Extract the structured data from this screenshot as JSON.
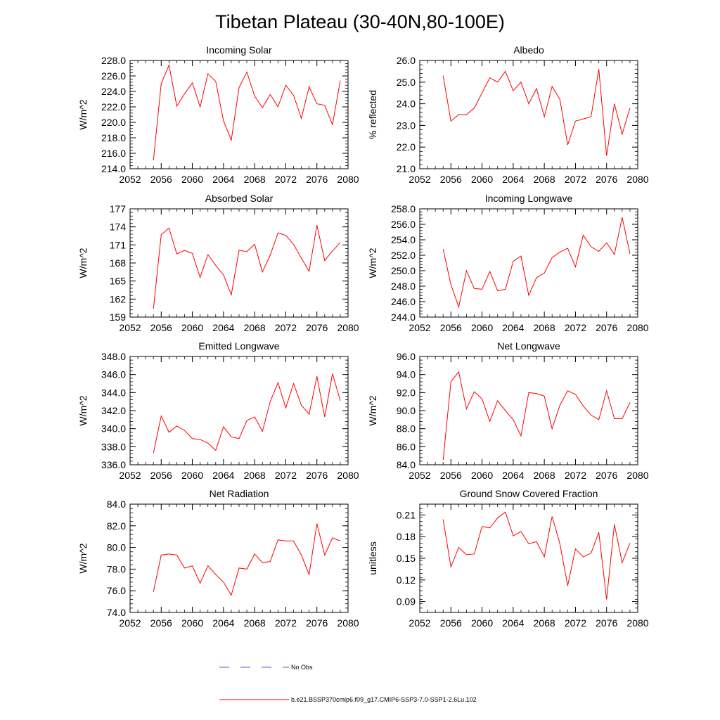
{
  "figure": {
    "title": "Tibetan Plateau (30-40N,80-100E)"
  },
  "legend": {
    "obs_label": "No Obs",
    "obs_color": "#5555cc",
    "model_label": "b.e21.BSSP370cmip6.f09_g17.CMIP6-SSP3-7.0-SSP1-2.6Lu.102",
    "model_color": "#ff0000"
  },
  "chart_data": [
    {
      "type": "line",
      "title": "Incoming Solar",
      "ylabel": "W/m^2",
      "xlim": [
        2052,
        2080
      ],
      "ylim": [
        214,
        228
      ],
      "yticks": [
        214,
        216,
        218,
        220,
        222,
        224,
        226,
        228
      ],
      "ytick_labels": [
        "214.0",
        "216.0",
        "218.0",
        "220.0",
        "222.0",
        "224.0",
        "226.0",
        "228.0"
      ],
      "xticks": [
        2052,
        2056,
        2060,
        2064,
        2068,
        2072,
        2076,
        2080
      ],
      "xtick_labels": [
        "2052",
        "2056",
        "2060",
        "2064",
        "2068",
        "2072",
        "2076",
        "2080"
      ],
      "x": [
        2055,
        2056,
        2057,
        2058,
        2059,
        2060,
        2061,
        2062,
        2063,
        2064,
        2065,
        2066,
        2067,
        2068,
        2069,
        2070,
        2071,
        2072,
        2073,
        2074,
        2075,
        2076,
        2077,
        2078,
        2079
      ],
      "series": [
        {
          "values": [
            215.1,
            225.0,
            227.4,
            222.1,
            223.7,
            225.1,
            222.0,
            226.3,
            225.3,
            220.2,
            217.7,
            224.5,
            226.5,
            223.4,
            221.9,
            223.6,
            222.0,
            224.8,
            223.5,
            220.5,
            224.6,
            222.4,
            222.2,
            219.7,
            225.4
          ]
        }
      ]
    },
    {
      "type": "line",
      "title": "Albedo",
      "ylabel": "% reflected",
      "xlim": [
        2052,
        2080
      ],
      "ylim": [
        21,
        26
      ],
      "yticks": [
        21,
        22,
        23,
        24,
        25,
        26
      ],
      "ytick_labels": [
        "21.0",
        "22.0",
        "23.0",
        "24.0",
        "25.0",
        "26.0"
      ],
      "xticks": [
        2052,
        2056,
        2060,
        2064,
        2068,
        2072,
        2076,
        2080
      ],
      "xtick_labels": [
        "2052",
        "2056",
        "2060",
        "2064",
        "2068",
        "2072",
        "2076",
        "2080"
      ],
      "x": [
        2055,
        2056,
        2057,
        2058,
        2059,
        2060,
        2061,
        2062,
        2063,
        2064,
        2065,
        2066,
        2067,
        2068,
        2069,
        2070,
        2071,
        2072,
        2073,
        2074,
        2075,
        2076,
        2077,
        2078,
        2079
      ],
      "series": [
        {
          "values": [
            25.3,
            23.2,
            23.5,
            23.5,
            23.8,
            24.5,
            25.2,
            25.0,
            25.5,
            24.6,
            25.0,
            24.0,
            24.7,
            23.4,
            24.8,
            24.2,
            22.1,
            23.2,
            23.3,
            23.4,
            25.6,
            21.6,
            24.0,
            22.6,
            23.8
          ]
        }
      ]
    },
    {
      "type": "line",
      "title": "Absorbed Solar",
      "ylabel": "W/m^2",
      "xlim": [
        2052,
        2080
      ],
      "ylim": [
        159,
        177
      ],
      "yticks": [
        159,
        162,
        165,
        168,
        171,
        174,
        177
      ],
      "ytick_labels": [
        "159",
        "162",
        "165",
        "168",
        "171",
        "174",
        "177"
      ],
      "xticks": [
        2052,
        2056,
        2060,
        2064,
        2068,
        2072,
        2076,
        2080
      ],
      "xtick_labels": [
        "2052",
        "2056",
        "2060",
        "2064",
        "2068",
        "2072",
        "2076",
        "2080"
      ],
      "x": [
        2055,
        2056,
        2057,
        2058,
        2059,
        2060,
        2061,
        2062,
        2063,
        2064,
        2065,
        2066,
        2067,
        2068,
        2069,
        2070,
        2071,
        2072,
        2073,
        2074,
        2075,
        2076,
        2077,
        2078,
        2079
      ],
      "series": [
        {
          "values": [
            160.4,
            172.7,
            173.8,
            169.5,
            170.1,
            169.6,
            165.6,
            169.4,
            167.6,
            166.0,
            162.7,
            170.1,
            169.9,
            171.1,
            166.5,
            169.3,
            173.0,
            172.6,
            171.1,
            168.8,
            166.6,
            174.3,
            168.4,
            170.0,
            171.4
          ]
        }
      ]
    },
    {
      "type": "line",
      "title": "Incoming Longwave",
      "ylabel": "W/m^2",
      "xlim": [
        2052,
        2080
      ],
      "ylim": [
        244,
        258
      ],
      "yticks": [
        244,
        246,
        248,
        250,
        252,
        254,
        256,
        258
      ],
      "ytick_labels": [
        "244.0",
        "246.0",
        "248.0",
        "250.0",
        "252.0",
        "254.0",
        "256.0",
        "258.0"
      ],
      "xticks": [
        2052,
        2056,
        2060,
        2064,
        2068,
        2072,
        2076,
        2080
      ],
      "xtick_labels": [
        "2052",
        "2056",
        "2060",
        "2064",
        "2068",
        "2072",
        "2076",
        "2080"
      ],
      "x": [
        2055,
        2056,
        2057,
        2058,
        2059,
        2060,
        2061,
        2062,
        2063,
        2064,
        2065,
        2066,
        2067,
        2068,
        2069,
        2070,
        2071,
        2072,
        2073,
        2074,
        2075,
        2076,
        2077,
        2078,
        2079
      ],
      "series": [
        {
          "values": [
            252.8,
            248.2,
            245.3,
            250.0,
            247.7,
            247.6,
            249.9,
            247.4,
            247.6,
            251.2,
            251.9,
            246.8,
            249.1,
            249.7,
            251.7,
            252.4,
            252.9,
            250.5,
            254.6,
            253.1,
            252.5,
            253.6,
            252.1,
            256.9,
            252.2
          ]
        }
      ]
    },
    {
      "type": "line",
      "title": "Emitted Longwave",
      "ylabel": "W/m^2",
      "xlim": [
        2052,
        2080
      ],
      "ylim": [
        336,
        348
      ],
      "yticks": [
        336,
        338,
        340,
        342,
        344,
        346,
        348
      ],
      "ytick_labels": [
        "336.0",
        "338.0",
        "340.0",
        "342.0",
        "344.0",
        "346.0",
        "348.0"
      ],
      "xticks": [
        2052,
        2056,
        2060,
        2064,
        2068,
        2072,
        2076,
        2080
      ],
      "xtick_labels": [
        "2052",
        "2056",
        "2060",
        "2064",
        "2068",
        "2072",
        "2076",
        "2080"
      ],
      "x": [
        2055,
        2056,
        2057,
        2058,
        2059,
        2060,
        2061,
        2062,
        2063,
        2064,
        2065,
        2066,
        2067,
        2068,
        2069,
        2070,
        2071,
        2072,
        2073,
        2074,
        2075,
        2076,
        2077,
        2078,
        2079
      ],
      "series": [
        {
          "values": [
            337.3,
            341.4,
            339.6,
            340.3,
            339.8,
            338.9,
            338.8,
            338.4,
            337.6,
            340.2,
            339.1,
            338.9,
            340.9,
            341.3,
            339.7,
            343.0,
            345.1,
            342.3,
            345.0,
            342.6,
            341.6,
            345.8,
            341.3,
            346.1,
            343.1
          ]
        }
      ]
    },
    {
      "type": "line",
      "title": "Net Longwave",
      "ylabel": "W/m^2",
      "xlim": [
        2052,
        2080
      ],
      "ylim": [
        84,
        96
      ],
      "yticks": [
        84,
        86,
        88,
        90,
        92,
        94,
        96
      ],
      "ytick_labels": [
        "84.0",
        "86.0",
        "88.0",
        "90.0",
        "92.0",
        "94.0",
        "96.0"
      ],
      "xticks": [
        2052,
        2056,
        2060,
        2064,
        2068,
        2072,
        2076,
        2080
      ],
      "xtick_labels": [
        "2052",
        "2056",
        "2060",
        "2064",
        "2068",
        "2072",
        "2076",
        "2080"
      ],
      "x": [
        2055,
        2056,
        2057,
        2058,
        2059,
        2060,
        2061,
        2062,
        2063,
        2064,
        2065,
        2066,
        2067,
        2068,
        2069,
        2070,
        2071,
        2072,
        2073,
        2074,
        2075,
        2076,
        2077,
        2078,
        2079
      ],
      "series": [
        {
          "values": [
            84.5,
            93.2,
            94.3,
            90.2,
            92.1,
            91.3,
            88.8,
            91.1,
            90.0,
            89.0,
            87.2,
            92.0,
            91.9,
            91.6,
            88.0,
            90.6,
            92.2,
            91.8,
            90.5,
            89.5,
            89.0,
            92.2,
            89.1,
            89.1,
            90.9
          ]
        }
      ]
    },
    {
      "type": "line",
      "title": "Net Radiation",
      "ylabel": "W/m^2",
      "xlim": [
        2052,
        2080
      ],
      "ylim": [
        74,
        84
      ],
      "yticks": [
        74,
        76,
        78,
        80,
        82,
        84
      ],
      "ytick_labels": [
        "74.0",
        "76.0",
        "78.0",
        "80.0",
        "82.0",
        "84.0"
      ],
      "xticks": [
        2052,
        2056,
        2060,
        2064,
        2068,
        2072,
        2076,
        2080
      ],
      "xtick_labels": [
        "2052",
        "2056",
        "2060",
        "2064",
        "2068",
        "2072",
        "2076",
        "2080"
      ],
      "x": [
        2055,
        2056,
        2057,
        2058,
        2059,
        2060,
        2061,
        2062,
        2063,
        2064,
        2065,
        2066,
        2067,
        2068,
        2069,
        2070,
        2071,
        2072,
        2073,
        2074,
        2075,
        2076,
        2077,
        2078,
        2079
      ],
      "series": [
        {
          "values": [
            75.9,
            79.3,
            79.4,
            79.3,
            78.1,
            78.3,
            76.7,
            78.3,
            77.5,
            76.8,
            75.6,
            78.1,
            78.0,
            79.4,
            78.6,
            78.7,
            80.7,
            80.6,
            80.6,
            79.3,
            77.5,
            82.2,
            79.3,
            80.9,
            80.6
          ]
        }
      ]
    },
    {
      "type": "line",
      "title": "Ground Snow Covered Fraction",
      "ylabel": "unitless",
      "xlim": [
        2052,
        2080
      ],
      "ylim": [
        0.075,
        0.225
      ],
      "yticks": [
        0.09,
        0.12,
        0.15,
        0.18,
        0.21
      ],
      "ytick_labels": [
        "0.09",
        "0.12",
        "0.15",
        "0.18",
        "0.21"
      ],
      "xticks": [
        2052,
        2056,
        2060,
        2064,
        2068,
        2072,
        2076,
        2080
      ],
      "xtick_labels": [
        "2052",
        "2056",
        "2060",
        "2064",
        "2068",
        "2072",
        "2076",
        "2080"
      ],
      "x": [
        2055,
        2056,
        2057,
        2058,
        2059,
        2060,
        2061,
        2062,
        2063,
        2064,
        2065,
        2066,
        2067,
        2068,
        2069,
        2070,
        2071,
        2072,
        2073,
        2074,
        2075,
        2076,
        2077,
        2078,
        2079
      ],
      "series": [
        {
          "values": [
            0.204,
            0.138,
            0.165,
            0.155,
            0.156,
            0.194,
            0.192,
            0.206,
            0.214,
            0.181,
            0.187,
            0.17,
            0.173,
            0.152,
            0.208,
            0.17,
            0.112,
            0.163,
            0.152,
            0.157,
            0.186,
            0.093,
            0.197,
            0.144,
            0.171
          ]
        }
      ]
    }
  ]
}
